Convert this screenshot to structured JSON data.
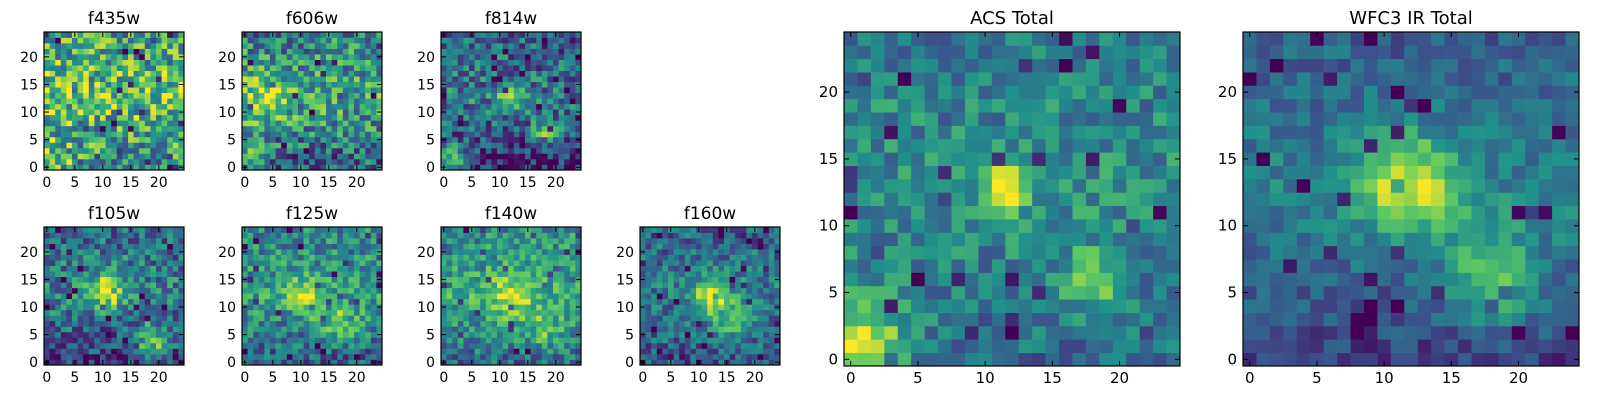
{
  "figure": {
    "colormap": "viridis",
    "colormap_stops": [
      "#440154",
      "#3b528b",
      "#21918c",
      "#5ec962",
      "#fde725"
    ],
    "frame_color": "#000000",
    "background": "#ffffff"
  },
  "chart_data": [
    {
      "type": "heatmap",
      "title": "f435w",
      "xlabel": "",
      "ylabel": "",
      "x_range": [
        0,
        24
      ],
      "y_range": [
        0,
        24
      ],
      "grid_size": 25,
      "xticks": [
        0,
        5,
        10,
        15,
        20
      ],
      "yticks": [
        0,
        5,
        10,
        15,
        20
      ],
      "xtick_labels": [
        "0",
        "5",
        "10",
        "15",
        "20"
      ],
      "ytick_labels": [
        "0",
        "5",
        "10",
        "15",
        "20"
      ],
      "levels": [
        0.45,
        0.75,
        0.55
      ],
      "seed": 11,
      "noise": 0.45,
      "blobs": [
        {
          "x": 1,
          "y": 1,
          "amp": 0.25,
          "sigma": 3
        }
      ]
    },
    {
      "type": "heatmap",
      "title": "f606w",
      "xlabel": "",
      "ylabel": "",
      "x_range": [
        0,
        24
      ],
      "y_range": [
        0,
        24
      ],
      "grid_size": 25,
      "xticks": [
        0,
        5,
        10,
        15,
        20
      ],
      "yticks": [
        0,
        5,
        10,
        15,
        20
      ],
      "xtick_labels": [
        "0",
        "5",
        "10",
        "15",
        "20"
      ],
      "ytick_labels": [
        "0",
        "5",
        "10",
        "15",
        "20"
      ],
      "levels": [
        0.3,
        0.62,
        0.45
      ],
      "seed": 23,
      "noise": 0.38,
      "blobs": [
        {
          "x": 3,
          "y": 12,
          "amp": 0.25,
          "sigma": 3
        },
        {
          "x": 1,
          "y": 2,
          "amp": 0.3,
          "sigma": 2.5
        }
      ]
    },
    {
      "type": "heatmap",
      "title": "f814w",
      "xlabel": "",
      "ylabel": "",
      "x_range": [
        0,
        24
      ],
      "y_range": [
        0,
        24
      ],
      "grid_size": 25,
      "xticks": [
        0,
        5,
        10,
        15,
        20
      ],
      "yticks": [
        0,
        5,
        10,
        15,
        20
      ],
      "xtick_labels": [
        "0",
        "5",
        "10",
        "15",
        "20"
      ],
      "ytick_labels": [
        "0",
        "5",
        "10",
        "15",
        "20"
      ],
      "levels": [
        0.12,
        0.42,
        0.3
      ],
      "seed": 37,
      "noise": 0.32,
      "blobs": [
        {
          "x": 12,
          "y": 13,
          "amp": 0.55,
          "sigma": 1.4
        },
        {
          "x": 18,
          "y": 6,
          "amp": 0.4,
          "sigma": 1.8
        },
        {
          "x": 1,
          "y": 1,
          "amp": 0.6,
          "sigma": 2.2
        }
      ]
    },
    {
      "type": "heatmap",
      "title": "f105w",
      "xlabel": "",
      "ylabel": "",
      "x_range": [
        0,
        24
      ],
      "y_range": [
        0,
        24
      ],
      "grid_size": 25,
      "xticks": [
        0,
        5,
        10,
        15,
        20
      ],
      "yticks": [
        0,
        5,
        10,
        15,
        20
      ],
      "xtick_labels": [
        "0",
        "5",
        "10",
        "15",
        "20"
      ],
      "ytick_labels": [
        "0",
        "5",
        "10",
        "15",
        "20"
      ],
      "levels": [
        0.2,
        0.45,
        0.35
      ],
      "seed": 51,
      "noise": 0.3,
      "blobs": [
        {
          "x": 11,
          "y": 13,
          "amp": 0.55,
          "sigma": 2.2
        },
        {
          "x": 19,
          "y": 4,
          "amp": 0.5,
          "sigma": 2
        }
      ]
    },
    {
      "type": "heatmap",
      "title": "f125w",
      "xlabel": "",
      "ylabel": "",
      "x_range": [
        0,
        24
      ],
      "y_range": [
        0,
        24
      ],
      "grid_size": 25,
      "xticks": [
        0,
        5,
        10,
        15,
        20
      ],
      "yticks": [
        0,
        5,
        10,
        15,
        20
      ],
      "xtick_labels": [
        "0",
        "5",
        "10",
        "15",
        "20"
      ],
      "ytick_labels": [
        "0",
        "5",
        "10",
        "15",
        "20"
      ],
      "levels": [
        0.3,
        0.55,
        0.45
      ],
      "seed": 67,
      "noise": 0.28,
      "blobs": [
        {
          "x": 11,
          "y": 12,
          "amp": 0.35,
          "sigma": 2.5
        },
        {
          "x": 17,
          "y": 7,
          "amp": 0.3,
          "sigma": 2.5
        }
      ]
    },
    {
      "type": "heatmap",
      "title": "f140w",
      "xlabel": "",
      "ylabel": "",
      "x_range": [
        0,
        24
      ],
      "y_range": [
        0,
        24
      ],
      "grid_size": 25,
      "xticks": [
        0,
        5,
        10,
        15,
        20
      ],
      "yticks": [
        0,
        5,
        10,
        15,
        20
      ],
      "xtick_labels": [
        "0",
        "5",
        "10",
        "15",
        "20"
      ],
      "ytick_labels": [
        "0",
        "5",
        "10",
        "15",
        "20"
      ],
      "levels": [
        0.35,
        0.6,
        0.5
      ],
      "seed": 79,
      "noise": 0.26,
      "blobs": [
        {
          "x": 12,
          "y": 12,
          "amp": 0.35,
          "sigma": 2.8
        },
        {
          "x": 18,
          "y": 6,
          "amp": 0.25,
          "sigma": 2.5
        }
      ]
    },
    {
      "type": "heatmap",
      "title": "f160w",
      "xlabel": "",
      "ylabel": "",
      "x_range": [
        0,
        24
      ],
      "y_range": [
        0,
        24
      ],
      "grid_size": 25,
      "xticks": [
        0,
        5,
        10,
        15,
        20
      ],
      "yticks": [
        0,
        5,
        10,
        15,
        20
      ],
      "xtick_labels": [
        "0",
        "5",
        "10",
        "15",
        "20"
      ],
      "ytick_labels": [
        "0",
        "5",
        "10",
        "15",
        "20"
      ],
      "levels": [
        0.28,
        0.42,
        0.32
      ],
      "seed": 91,
      "noise": 0.26,
      "blobs": [
        {
          "x": 12,
          "y": 12,
          "amp": 0.5,
          "sigma": 2.2
        },
        {
          "x": 16,
          "y": 8,
          "amp": 0.35,
          "sigma": 2.5
        }
      ]
    },
    {
      "type": "heatmap",
      "title": "ACS Total",
      "xlabel": "",
      "ylabel": "",
      "x_range": [
        0,
        24
      ],
      "y_range": [
        0,
        24
      ],
      "grid_size": 25,
      "xticks": [
        0,
        5,
        10,
        15,
        20
      ],
      "yticks": [
        0,
        5,
        10,
        15,
        20
      ],
      "xtick_labels": [
        "0",
        "5",
        "10",
        "15",
        "20"
      ],
      "ytick_labels": [
        "0",
        "5",
        "10",
        "15",
        "20"
      ],
      "levels": [
        0.35,
        0.5,
        0.42
      ],
      "seed": 103,
      "noise": 0.22,
      "blobs": [
        {
          "x": 11.5,
          "y": 13,
          "amp": 0.55,
          "sigma": 1.3
        },
        {
          "x": 18,
          "y": 6,
          "amp": 0.45,
          "sigma": 1.4
        },
        {
          "x": 1,
          "y": 1,
          "amp": 0.6,
          "sigma": 2.3
        }
      ]
    },
    {
      "type": "heatmap",
      "title": "WFC3 IR Total",
      "xlabel": "",
      "ylabel": "",
      "x_range": [
        0,
        24
      ],
      "y_range": [
        0,
        24
      ],
      "grid_size": 25,
      "xticks": [
        0,
        5,
        10,
        15,
        20
      ],
      "yticks": [
        0,
        5,
        10,
        15,
        20
      ],
      "xtick_labels": [
        "0",
        "5",
        "10",
        "15",
        "20"
      ],
      "ytick_labels": [
        "0",
        "5",
        "10",
        "15",
        "20"
      ],
      "levels": [
        0.18,
        0.45,
        0.3
      ],
      "seed": 127,
      "noise": 0.16,
      "blobs": [
        {
          "x": 12,
          "y": 13,
          "amp": 0.55,
          "sigma": 2.5
        },
        {
          "x": 18,
          "y": 6,
          "amp": 0.4,
          "sigma": 2.5
        }
      ]
    }
  ]
}
